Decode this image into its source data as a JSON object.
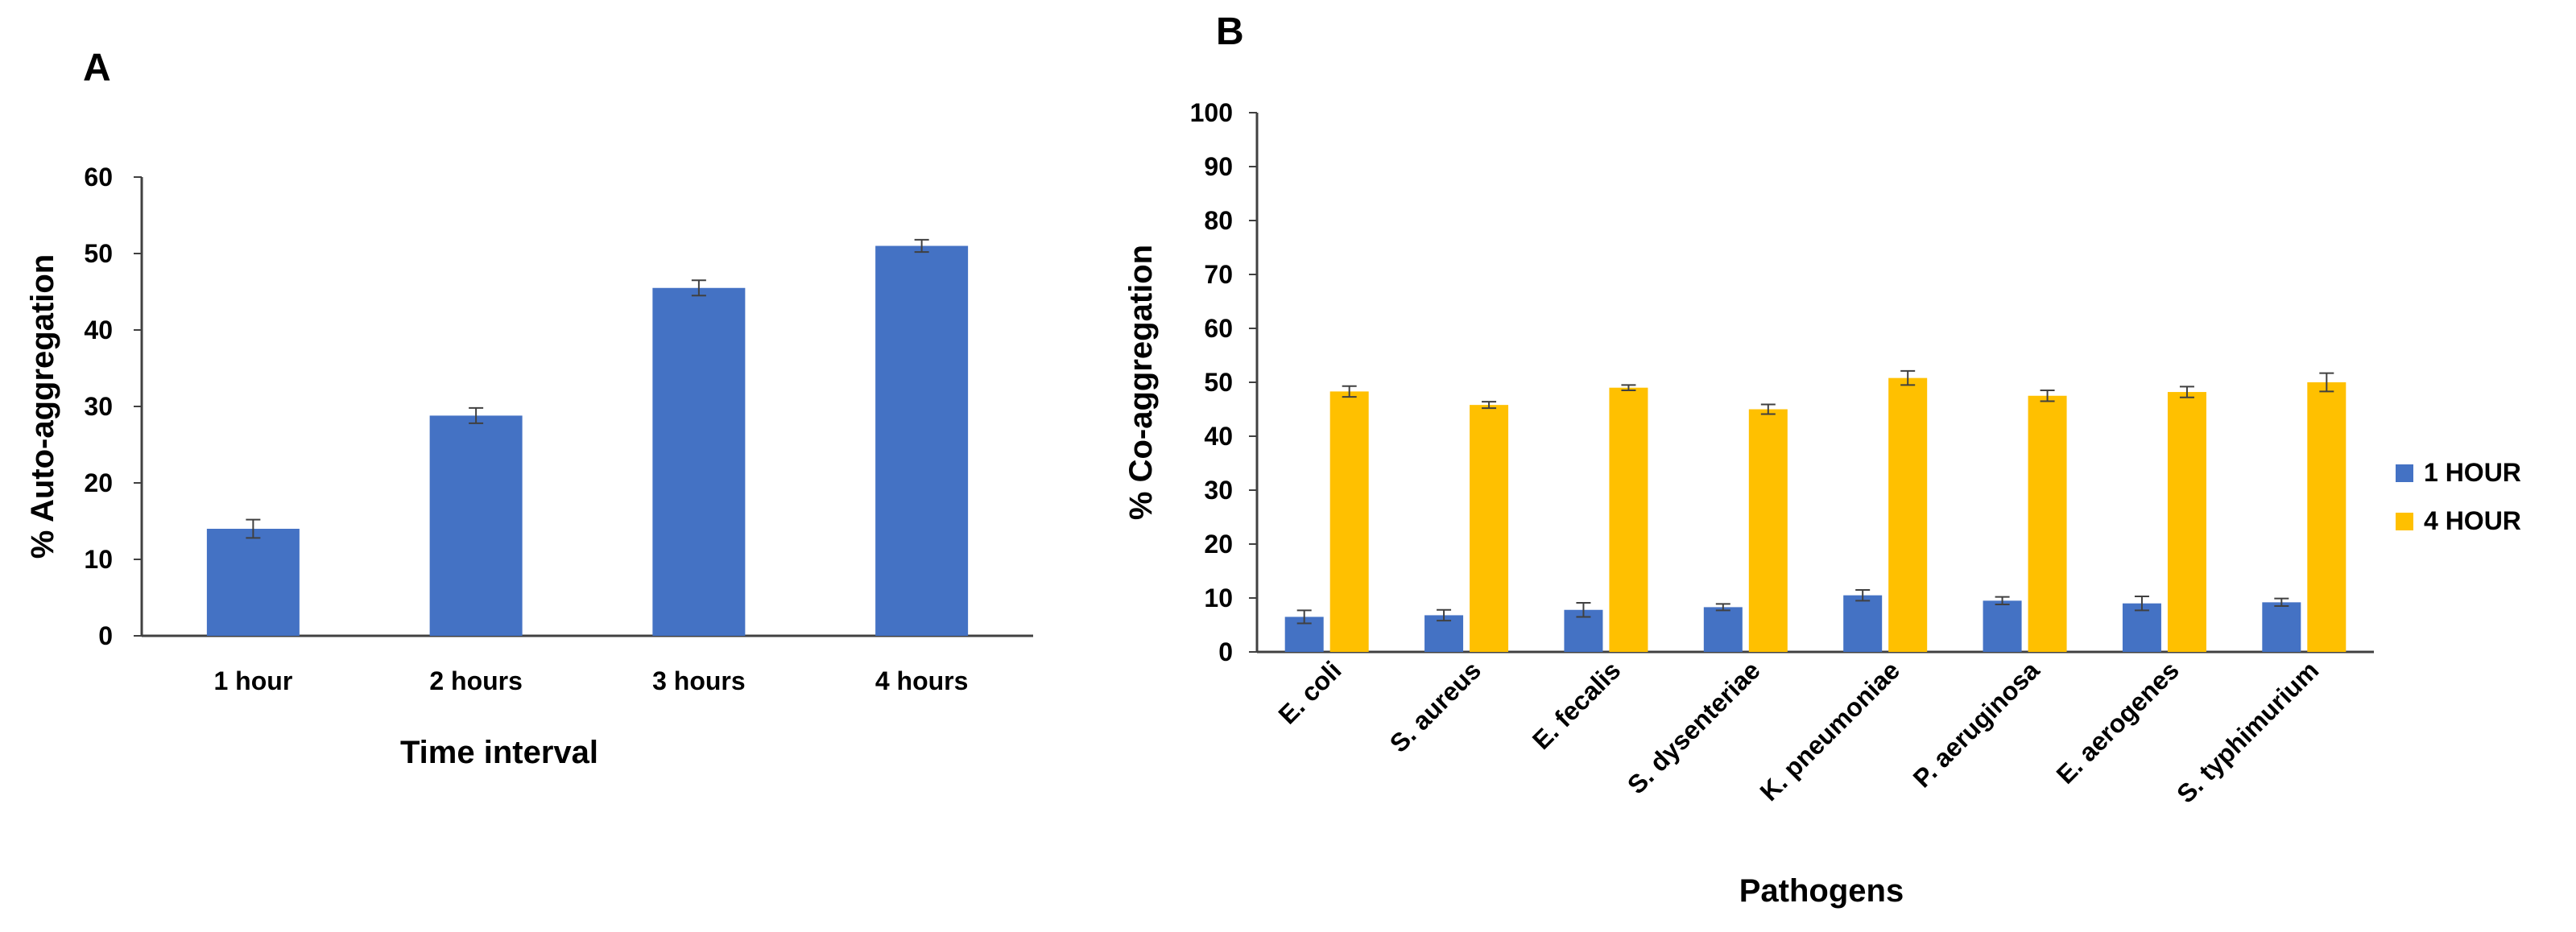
{
  "chart_data": [
    {
      "panel": "A",
      "type": "bar",
      "title": "",
      "xlabel": "Time interval",
      "ylabel": "% Auto-aggregation",
      "ylim": [
        0,
        60
      ],
      "ytick_step": 10,
      "grid": false,
      "categories": [
        "1 hour",
        "2 hours",
        "3 hours",
        "4 hours"
      ],
      "series": [
        {
          "name": "Auto-aggregation",
          "color": "#4472C4",
          "values": [
            14,
            28.8,
            45.5,
            51
          ],
          "errors": [
            1.2,
            1.0,
            1.0,
            0.8
          ]
        }
      ]
    },
    {
      "panel": "B",
      "type": "bar",
      "title": "",
      "xlabel": "Pathogens",
      "ylabel": "% Co-aggregation",
      "ylim": [
        0,
        100
      ],
      "ytick_step": 10,
      "grid": false,
      "legend_position": "right",
      "categories": [
        "E. coli",
        "S. aureus",
        "E. fecalis",
        "S. dysenteriae",
        "K. pneumoniae",
        "P. aeruginosa",
        "E. aerogenes",
        "S. typhimurium"
      ],
      "series": [
        {
          "name": "1 HOUR",
          "color": "#4472C4",
          "values": [
            6.5,
            6.8,
            7.8,
            8.3,
            10.5,
            9.5,
            9.0,
            9.2
          ],
          "errors": [
            1.2,
            1.0,
            1.3,
            0.6,
            1.0,
            0.7,
            1.3,
            0.7
          ]
        },
        {
          "name": "4 HOUR",
          "color": "#FFC000",
          "values": [
            48.3,
            45.8,
            49.0,
            45.0,
            50.8,
            47.5,
            48.2,
            50.0
          ],
          "errors": [
            1.0,
            0.6,
            0.5,
            0.9,
            1.3,
            1.0,
            1.0,
            1.7
          ]
        }
      ]
    }
  ]
}
